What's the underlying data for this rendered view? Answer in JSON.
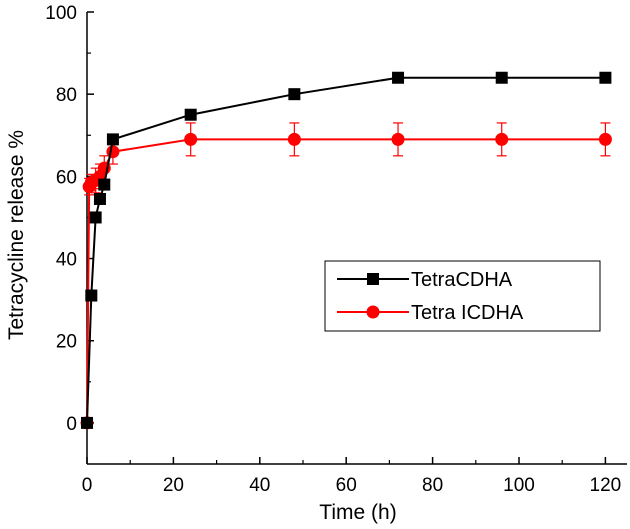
{
  "chart_data": {
    "type": "line",
    "xlabel": "Time (h)",
    "ylabel": "Tetracycline release %",
    "xlim": [
      0,
      125
    ],
    "ylim": [
      -10,
      100
    ],
    "xticks": [
      0,
      20,
      40,
      60,
      80,
      100,
      120
    ],
    "yticks": [
      0,
      20,
      40,
      60,
      80,
      100
    ],
    "grid": false,
    "legend_position": "center-right",
    "series": [
      {
        "name": "TetraCDHA",
        "color": "#000000",
        "marker": "square",
        "x": [
          0,
          1,
          2,
          3,
          4,
          6,
          24,
          48,
          72,
          96,
          120
        ],
        "y": [
          0,
          31,
          50,
          54.5,
          58,
          69,
          75,
          80,
          84,
          84,
          84
        ]
      },
      {
        "name": "Tetra ICDHA",
        "color": "#ff0000",
        "marker": "circle",
        "x": [
          0,
          0.5,
          1,
          2,
          3,
          4,
          6,
          24,
          48,
          72,
          96,
          120
        ],
        "y": [
          0,
          57.5,
          58.5,
          59,
          60,
          62,
          66,
          69,
          69,
          69,
          69,
          69
        ],
        "error": [
          0,
          2,
          2,
          3,
          3,
          3,
          3,
          4,
          4,
          4,
          4,
          4
        ]
      }
    ]
  }
}
